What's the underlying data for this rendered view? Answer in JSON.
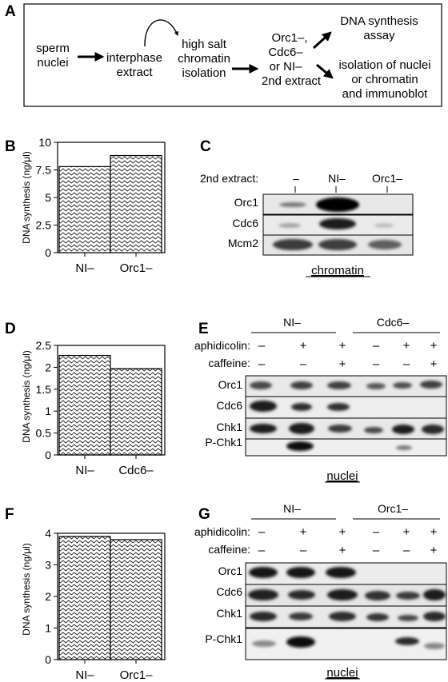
{
  "panelA": {
    "label": "A",
    "steps": {
      "sperm": [
        "sperm",
        "nuclei"
      ],
      "interphase": [
        "interphase",
        "extract"
      ],
      "highsalt": [
        "high salt",
        "chromatin",
        "isolation"
      ],
      "orc": [
        "Orc1–,",
        "Cdc6–",
        "or NI–",
        "2nd extract"
      ],
      "dna": [
        "DNA synthesis",
        "assay"
      ],
      "isolation": [
        "isolation of nuclei",
        "or chromatin",
        "and immunoblot"
      ]
    }
  },
  "panelB": {
    "label": "B",
    "chart_data": {
      "type": "bar",
      "categories": [
        "NI–",
        "Orc1–"
      ],
      "values": [
        7.8,
        8.8
      ],
      "ylabel": "DNA synthesis (ng/μl)",
      "ylim": [
        0,
        10
      ],
      "yticks": [
        "0",
        "2.5",
        "5",
        "7.5",
        "10"
      ]
    }
  },
  "panelC": {
    "label": "C",
    "header_label": "2nd extract:",
    "lanes": [
      "–",
      "NI–",
      "Orc1–"
    ],
    "rows": [
      "Orc1",
      "Cdc6",
      "Mcm2"
    ],
    "caption": "chromatin"
  },
  "panelD": {
    "label": "D",
    "chart_data": {
      "type": "bar",
      "categories": [
        "NI–",
        "Cdc6–"
      ],
      "values": [
        2.27,
        1.97
      ],
      "ylabel": "DNA synthesis (ng/μl)",
      "ylim": [
        0,
        2.5
      ],
      "yticks": [
        "0",
        "0.5",
        "1",
        "1.5",
        "2",
        "2.5"
      ]
    }
  },
  "panelE": {
    "label": "E",
    "groups": [
      "NI–",
      "Cdc6–"
    ],
    "treatments": [
      {
        "label": "aphidicolin:",
        "values": [
          "–",
          "+",
          "+",
          "–",
          "+",
          "+"
        ]
      },
      {
        "label": "caffeine:",
        "values": [
          "–",
          "–",
          "+",
          "–",
          "–",
          "+"
        ]
      }
    ],
    "rows": [
      "Orc1",
      "Cdc6",
      "Chk1",
      "P-Chk1"
    ],
    "caption": "nuclei"
  },
  "panelF": {
    "label": "F",
    "chart_data": {
      "type": "bar",
      "categories": [
        "NI–",
        "Orc1–"
      ],
      "values": [
        3.9,
        3.8
      ],
      "ylabel": "DNA synthesis (ng/μl)",
      "ylim": [
        0,
        4
      ],
      "yticks": [
        "0",
        "1",
        "2",
        "3",
        "4"
      ]
    }
  },
  "panelG": {
    "label": "G",
    "groups": [
      "NI–",
      "Orc1–"
    ],
    "treatments": [
      {
        "label": "aphidicolin:",
        "values": [
          "–",
          "+",
          "+",
          "–",
          "+",
          "+"
        ]
      },
      {
        "label": "caffeine:",
        "values": [
          "–",
          "–",
          "+",
          "–",
          "–",
          "+"
        ]
      }
    ],
    "rows": [
      "Orc1",
      "Cdc6",
      "Chk1",
      "P-Chk1"
    ],
    "caption": "nuclei"
  }
}
